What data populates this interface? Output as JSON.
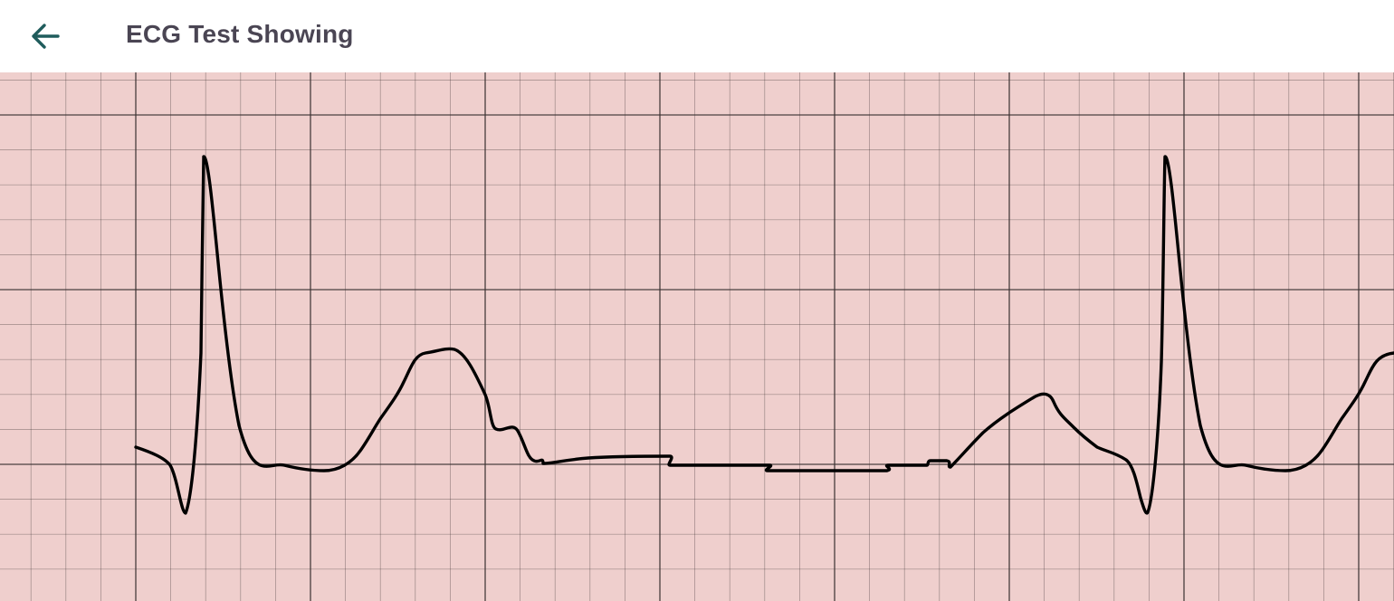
{
  "app_bar": {
    "title": "ECG Test Showing",
    "back_icon": "arrow-left-icon",
    "icon_color": "#1f5c5c",
    "title_color": "#4a4553"
  },
  "ecg": {
    "paper_color": "#efcfcd",
    "grid_line_color": "#3a3030",
    "trace_color": "#000000"
  }
}
